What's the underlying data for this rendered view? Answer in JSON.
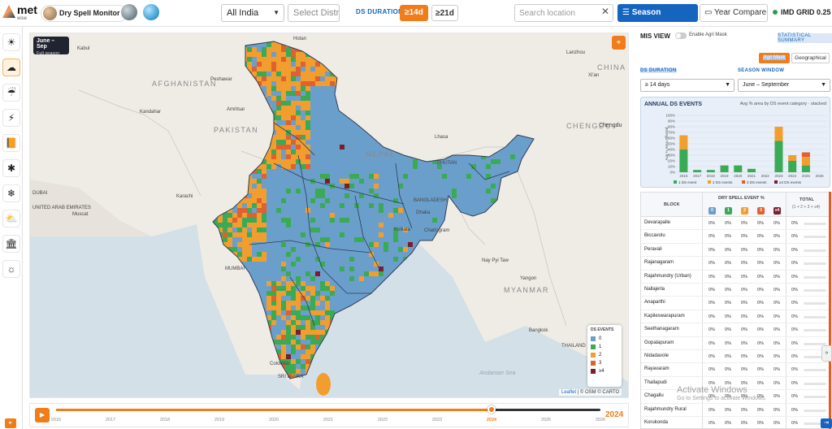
{
  "header": {
    "logo_text": "met",
    "logo_sub": "wise",
    "app_title": "Dry Spell Monitor",
    "region_value": "All India",
    "district_placeholder": "Select District",
    "ds_duration_label": "DS DURATION:",
    "duration_options": [
      "≥14d",
      "≥21d"
    ],
    "duration_selected": "≥14d",
    "search_placeholder": "Search location",
    "clear_symbol": "✕",
    "season_windows_label": "Season Windows",
    "year_compare_label": "Year Compare",
    "grid_label": "IMD GRID 0.25"
  },
  "sidebar": {
    "items": [
      {
        "name": "sun-icon",
        "glyph": "☀",
        "active": false
      },
      {
        "name": "cloud-icon",
        "glyph": "☁",
        "active": true
      },
      {
        "name": "rain-cloud-icon",
        "glyph": "☔",
        "active": false
      },
      {
        "name": "lightning-icon",
        "glyph": "⚡",
        "active": false
      },
      {
        "name": "book-icon",
        "glyph": "📙",
        "active": false
      },
      {
        "name": "pinwheel-icon",
        "glyph": "✱",
        "active": false
      },
      {
        "name": "snow-icon",
        "glyph": "❄",
        "active": false
      },
      {
        "name": "weather-icon",
        "glyph": "⛅",
        "active": false
      },
      {
        "name": "building-icon",
        "glyph": "🏛",
        "active": false
      },
      {
        "name": "sunrise-icon",
        "glyph": "☼",
        "active": false
      }
    ]
  },
  "map": {
    "season_badge_title": "June – Sep",
    "season_badge_sub": "Full season",
    "labels": [
      {
        "text": "Hotan",
        "cls": "mlbl"
      },
      {
        "text": "Kabul",
        "cls": "mlbl"
      },
      {
        "text": "AFGHANISTAN",
        "cls": "mlbl big"
      },
      {
        "text": "Peshawar",
        "cls": "mlbl"
      },
      {
        "text": "Kandahar",
        "cls": "mlbl"
      },
      {
        "text": "Amritsar",
        "cls": "mlbl"
      },
      {
        "text": "PAKISTAN",
        "cls": "mlbl big"
      },
      {
        "text": "Lhasa",
        "cls": "mlbl"
      },
      {
        "text": "NEPAL",
        "cls": "mlbl big"
      },
      {
        "text": "BHUTAN",
        "cls": "mlbl"
      },
      {
        "text": "CHINA",
        "cls": "mlbl big"
      },
      {
        "text": "Lanzhou",
        "cls": "mlbl"
      },
      {
        "text": "Xi'an",
        "cls": "mlbl"
      },
      {
        "text": "Chengdu",
        "cls": "mlbl cty"
      },
      {
        "text": "CHENGDU",
        "cls": "mlbl big"
      },
      {
        "text": "Karachi",
        "cls": "mlbl"
      },
      {
        "text": "DUBAI",
        "cls": "mlbl"
      },
      {
        "text": "UNITED ARAB EMIRATES",
        "cls": "mlbl"
      },
      {
        "text": "Muscat",
        "cls": "mlbl"
      },
      {
        "text": "Dhaka",
        "cls": "mlbl"
      },
      {
        "text": "BANGLADESH",
        "cls": "mlbl"
      },
      {
        "text": "Chattogram",
        "cls": "mlbl"
      },
      {
        "text": "Kolkata",
        "cls": "mlbl"
      },
      {
        "text": "MUMBAI",
        "cls": "mlbl"
      },
      {
        "text": "Nay Pyi Taw",
        "cls": "mlbl"
      },
      {
        "text": "MYANMAR",
        "cls": "mlbl big"
      },
      {
        "text": "Yangon",
        "cls": "mlbl"
      },
      {
        "text": "Bangkok",
        "cls": "mlbl"
      },
      {
        "text": "THAILAND",
        "cls": "mlbl"
      },
      {
        "text": "Andaman Sea",
        "cls": "mlbl sea"
      },
      {
        "text": "Colombo",
        "cls": "mlbl"
      },
      {
        "text": "SRI LANKA",
        "cls": "mlbl"
      }
    ],
    "legend_title": "DS EVENTS",
    "legend": [
      {
        "label": "0",
        "color": "#6a9fcb"
      },
      {
        "label": "1",
        "color": "#3aaa55"
      },
      {
        "label": "2",
        "color": "#f29e2e"
      },
      {
        "label": "3",
        "color": "#e06030"
      },
      {
        "label": "≥4",
        "color": "#7a1e2a"
      }
    ],
    "attribution_leaflet": "Leaflet",
    "attribution_rest": " | © OSM © CARTO"
  },
  "timeline": {
    "years": [
      "2016",
      "2017",
      "2018",
      "2019",
      "2020",
      "2021",
      "2022",
      "2023",
      "2024",
      "2025",
      "2026"
    ],
    "selected_index": 8,
    "current_year": "2024"
  },
  "panel": {
    "mis_view": "MIS VIEW",
    "agri_mask": "Enable Agri Mask",
    "stat_summary": "STATISTICAL SUMMARY",
    "view_tabs": [
      "Agri Mask",
      "Geographical"
    ],
    "ds_duration_label": "DS DURATION",
    "season_window_label": "SEASON WINDOW",
    "duration_value": "≥ 14 days",
    "season_value": "June – September",
    "chart_title": "ANNUAL DS EVENTS",
    "chart_subtitle": "Avg % area by DS event category · stacked",
    "table_block_header": "BLOCK",
    "table_ds_header": "DRY SPELL EVENT %",
    "table_total_header": "TOTAL",
    "table_total_sub": "(1 + 2 + 3 + ≥4)",
    "categories": [
      {
        "label": "0",
        "color": "#6a9fcb"
      },
      {
        "label": "1",
        "color": "#3aaa55"
      },
      {
        "label": "2",
        "color": "#f29e2e"
      },
      {
        "label": "3",
        "color": "#e06030"
      },
      {
        "label": "≥4",
        "color": "#7a1e2a"
      }
    ],
    "rows": [
      {
        "block": "Devarapalle",
        "values": [
          "0%",
          "0%",
          "0%",
          "0%",
          "0%",
          "0%"
        ]
      },
      {
        "block": "Biccavolu",
        "values": [
          "0%",
          "0%",
          "0%",
          "0%",
          "0%",
          "0%"
        ]
      },
      {
        "block": "Peravali",
        "values": [
          "0%",
          "0%",
          "0%",
          "0%",
          "0%",
          "0%"
        ]
      },
      {
        "block": "Rajanagaram",
        "values": [
          "0%",
          "0%",
          "0%",
          "0%",
          "0%",
          "0%"
        ]
      },
      {
        "block": "Rajahmundry (Urban)",
        "values": [
          "0%",
          "0%",
          "0%",
          "0%",
          "0%",
          "0%"
        ]
      },
      {
        "block": "Nallajerla",
        "values": [
          "0%",
          "0%",
          "0%",
          "0%",
          "0%",
          "0%"
        ]
      },
      {
        "block": "Anaparthi",
        "values": [
          "0%",
          "0%",
          "0%",
          "0%",
          "0%",
          "0%"
        ]
      },
      {
        "block": "Kapileswarapuram",
        "values": [
          "0%",
          "0%",
          "0%",
          "0%",
          "0%",
          "0%"
        ]
      },
      {
        "block": "Seethanagaram",
        "values": [
          "0%",
          "0%",
          "0%",
          "0%",
          "0%",
          "0%"
        ]
      },
      {
        "block": "Gopalapuram",
        "values": [
          "0%",
          "0%",
          "0%",
          "0%",
          "0%",
          "0%"
        ]
      },
      {
        "block": "Nidadavole",
        "values": [
          "0%",
          "0%",
          "0%",
          "0%",
          "0%",
          "0%"
        ]
      },
      {
        "block": "Rayavaram",
        "values": [
          "0%",
          "0%",
          "0%",
          "0%",
          "0%",
          "0%"
        ]
      },
      {
        "block": "Thallapudi",
        "values": [
          "0%",
          "0%",
          "0%",
          "0%",
          "0%",
          "0%"
        ]
      },
      {
        "block": "Chagallu",
        "values": [
          "0%",
          "0%",
          "0%",
          "0%",
          "0%",
          "0%"
        ]
      },
      {
        "block": "Rajahmundry Rural",
        "values": [
          "0%",
          "0%",
          "0%",
          "0%",
          "0%",
          "0%"
        ]
      },
      {
        "block": "Korukonda",
        "values": [
          "0%",
          "0%",
          "0%",
          "0%",
          "0%",
          "0%"
        ]
      }
    ],
    "expander": "»"
  },
  "overlay": {
    "activate_title": "Activate Windows",
    "activate_sub": "Go to Settings to activate Windows."
  },
  "chart_data": {
    "type": "bar",
    "title": "ANNUAL DS EVENTS",
    "subtitle": "Avg % area by DS event category · stacked",
    "categories": [
      "2016",
      "2017",
      "2018",
      "2019",
      "2020",
      "2021",
      "2022",
      "2023",
      "2024",
      "2025",
      "2026"
    ],
    "series": [
      {
        "name": "1 DS event",
        "color": "#3aaa55",
        "values": [
          40,
          4,
          4,
          12,
          12,
          6,
          0,
          55,
          20,
          12,
          0
        ]
      },
      {
        "name": "2 DS events",
        "color": "#f29e2e",
        "values": [
          25,
          0,
          0,
          0,
          0,
          0,
          0,
          25,
          10,
          15,
          0
        ]
      },
      {
        "name": "3 DS events",
        "color": "#e06030",
        "values": [
          0,
          0,
          0,
          0,
          0,
          0,
          0,
          0,
          0,
          8,
          0
        ]
      },
      {
        "name": "≥4 DS events",
        "color": "#7a1e2a",
        "values": [
          0,
          0,
          0,
          0,
          0,
          0,
          0,
          0,
          0,
          0,
          0
        ]
      }
    ],
    "ylabel": "Avg % Area Affected",
    "yticks": [
      "100%",
      "90%",
      "80%",
      "70%",
      "60%",
      "50%",
      "40%",
      "30%",
      "20%",
      "10%",
      "0%"
    ],
    "ylim": [
      0,
      100
    ],
    "legend_position": "bottom"
  }
}
